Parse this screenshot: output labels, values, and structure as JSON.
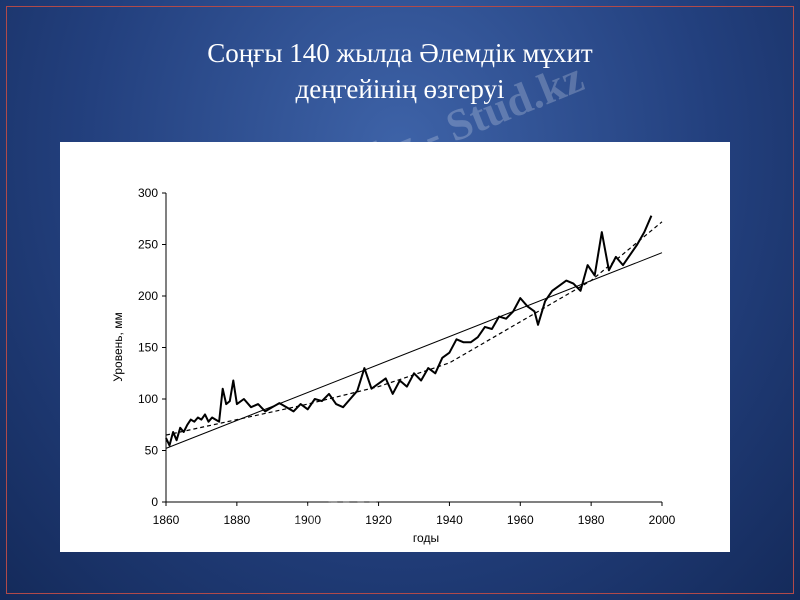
{
  "title_lines": [
    "Соңғы 140 жылда Әлемдік мұхит",
    "деңгейінің өзгеруі"
  ],
  "watermark": "Stud.kz - Stud.kz",
  "chart_data": {
    "type": "line",
    "x_label": "годы",
    "y_label": "Уровень, мм",
    "xlim": [
      1860,
      2000
    ],
    "xticks": [
      1860,
      1880,
      1900,
      1920,
      1940,
      1960,
      1980,
      2000
    ],
    "ylim": [
      0,
      300
    ],
    "yticks": [
      0,
      50,
      100,
      150,
      200,
      250,
      300
    ],
    "series": [
      {
        "color": "#000000",
        "style": "solid",
        "width": 2,
        "x": [
          1860,
          1861,
          1862,
          1863,
          1864,
          1865,
          1866,
          1867,
          1868,
          1869,
          1870,
          1871,
          1872,
          1873,
          1874,
          1875,
          1876,
          1877,
          1878,
          1879,
          1880,
          1882,
          1884,
          1886,
          1888,
          1890,
          1892,
          1894,
          1896,
          1898,
          1900,
          1902,
          1904,
          1906,
          1908,
          1910,
          1912,
          1914,
          1916,
          1918,
          1920,
          1922,
          1924,
          1926,
          1928,
          1930,
          1932,
          1934,
          1936,
          1938,
          1940,
          1942,
          1944,
          1946,
          1948,
          1950,
          1952,
          1954,
          1956,
          1958,
          1960,
          1962,
          1964,
          1965,
          1967,
          1969,
          1971,
          1973,
          1975,
          1977,
          1979,
          1981,
          1983,
          1985,
          1987,
          1989,
          1991,
          1993,
          1995,
          1997
        ],
        "values": [
          62,
          55,
          68,
          60,
          72,
          68,
          75,
          80,
          78,
          82,
          80,
          85,
          78,
          82,
          80,
          78,
          110,
          95,
          98,
          118,
          95,
          100,
          92,
          95,
          88,
          92,
          96,
          92,
          88,
          95,
          90,
          100,
          98,
          105,
          95,
          92,
          100,
          108,
          130,
          110,
          115,
          120,
          105,
          118,
          112,
          125,
          118,
          130,
          125,
          140,
          145,
          158,
          155,
          155,
          160,
          170,
          168,
          180,
          178,
          185,
          198,
          190,
          185,
          172,
          195,
          205,
          210,
          215,
          212,
          205,
          230,
          220,
          262,
          225,
          238,
          230,
          240,
          250,
          262,
          278
        ]
      },
      {
        "color": "#000000",
        "style": "solid",
        "width": 1,
        "x": [
          1860,
          2000
        ],
        "values": [
          52,
          242
        ]
      },
      {
        "color": "#000000",
        "style": "dashed",
        "width": 1.2,
        "x": [
          1860,
          1880,
          1900,
          1920,
          1940,
          1960,
          1980,
          2000
        ],
        "values": [
          65,
          80,
          95,
          112,
          135,
          175,
          215,
          272
        ]
      }
    ]
  }
}
